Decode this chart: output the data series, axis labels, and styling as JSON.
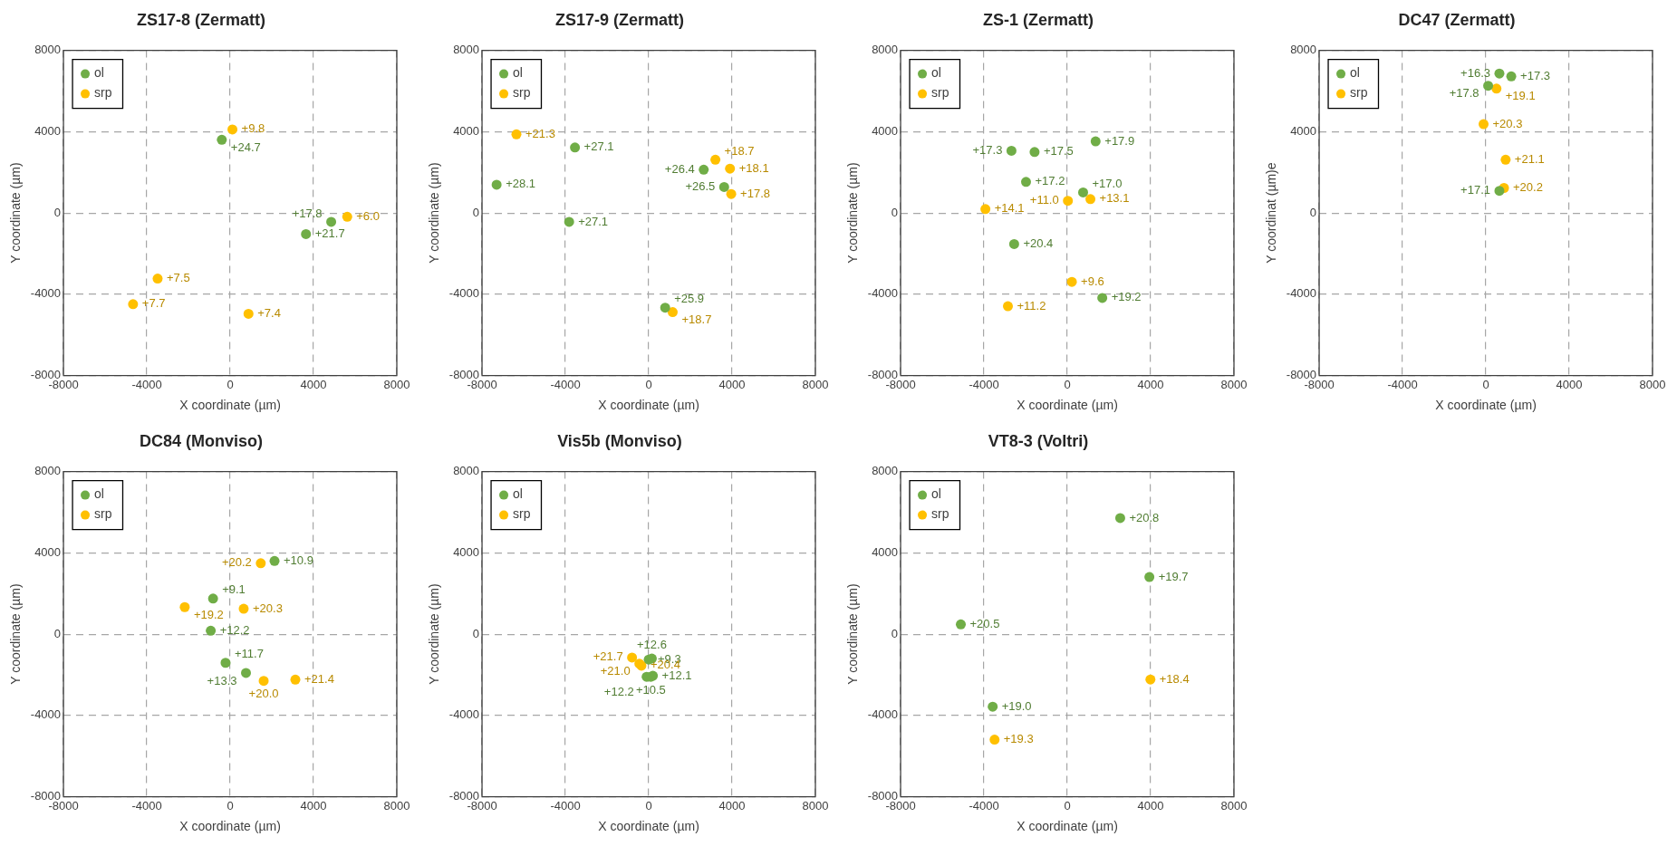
{
  "chart_data": [
    {
      "type": "scatter",
      "title": "ZS17-8 (Zermatt)",
      "xlabel": "X coordinate (µm)",
      "ylabel": "Y coordinate (µm)",
      "xlim": [
        -8000,
        8000
      ],
      "ylim": [
        -8000,
        8000
      ],
      "xticks": [
        -8000,
        -4000,
        0,
        4000,
        8000
      ],
      "yticks": [
        -8000,
        -4000,
        0,
        4000,
        8000
      ],
      "grid": true,
      "legend": "top left",
      "marker": "circle",
      "series": [
        {
          "name": "ol",
          "color": "#70ad47",
          "x": [
            -400,
            3640,
            4850
          ],
          "values": [
            3600,
            -1040,
            -440
          ]
        },
        {
          "name": "srp",
          "color": "#ffc000",
          "x": [
            110,
            5620,
            -3480,
            -4660,
            880
          ],
          "values": [
            4110,
            -190,
            -3230,
            -4490,
            -4960
          ]
        }
      ],
      "annotations": [
        {
          "text": "+24.7",
          "x": -400,
          "y": 3600
        },
        {
          "text": "+21.7",
          "x": 3640,
          "y": -1040
        },
        {
          "text": "+17.8",
          "x": 4850,
          "y": -440
        },
        {
          "text": "+9.8",
          "x": 110,
          "y": 4110
        },
        {
          "text": "+6.0",
          "x": 5620,
          "y": -190
        },
        {
          "text": "+7.5",
          "x": -3480,
          "y": -3230
        },
        {
          "text": "+7.7",
          "x": -4660,
          "y": -4490
        },
        {
          "text": "+7.4",
          "x": 880,
          "y": -4960
        }
      ]
    },
    {
      "type": "scatter",
      "title": "ZS17-9 (Zermatt)",
      "xlabel": "X coordinate (µm)",
      "ylabel": "Y coordinate (µm)",
      "xlim": [
        -8000,
        8000
      ],
      "ylim": [
        -8000,
        8000
      ],
      "xticks": [
        -8000,
        -4000,
        0,
        4000,
        8000
      ],
      "yticks": [
        -8000,
        -4000,
        0,
        4000,
        8000
      ],
      "grid": true,
      "legend": "top left",
      "marker": "circle",
      "series": [
        {
          "name": "ol",
          "color": "#70ad47",
          "x": [
            -3540,
            -7300,
            -3820,
            2640,
            3620,
            790
          ],
          "values": [
            3220,
            1390,
            -440,
            2130,
            1280,
            -4660
          ]
        },
        {
          "name": "srp",
          "color": "#ffc000",
          "x": [
            -6350,
            3200,
            3900,
            3960,
            1150
          ],
          "values": [
            3870,
            2620,
            2180,
            930,
            -4880
          ]
        }
      ],
      "annotations": [
        {
          "text": "+27.1",
          "x": -3540,
          "y": 3220
        },
        {
          "text": "+28.1",
          "x": -7300,
          "y": 1390
        },
        {
          "text": "+27.1",
          "x": -3820,
          "y": -440
        },
        {
          "text": "+26.4",
          "x": 2640,
          "y": 2130
        },
        {
          "text": "+26.5",
          "x": 3620,
          "y": 1280
        },
        {
          "text": "+25.9",
          "x": 790,
          "y": -4660
        },
        {
          "text": "+21.3",
          "x": -6350,
          "y": 3870
        },
        {
          "text": "+18.7",
          "x": 3200,
          "y": 2620
        },
        {
          "text": "+18.1",
          "x": 3900,
          "y": 2180
        },
        {
          "text": "+17.8",
          "x": 3960,
          "y": 930
        },
        {
          "text": "+18.7",
          "x": 1150,
          "y": -4880
        }
      ]
    },
    {
      "type": "scatter",
      "title": "ZS-1 (Zermatt)",
      "xlabel": "X coordinate (µm)",
      "ylabel": "Y coordinate (µm)",
      "xlim": [
        -8000,
        8000
      ],
      "ylim": [
        -8000,
        8000
      ],
      "xticks": [
        -8000,
        -4000,
        0,
        4000,
        8000
      ],
      "yticks": [
        -8000,
        -4000,
        0,
        4000,
        8000
      ],
      "grid": true,
      "legend": "top left",
      "marker": "circle",
      "series": [
        {
          "name": "ol",
          "color": "#70ad47",
          "x": [
            -2680,
            -1570,
            1360,
            -1980,
            760,
            -2550,
            1680
          ],
          "values": [
            3060,
            3000,
            3520,
            1530,
            1010,
            -1530,
            -4180
          ]
        },
        {
          "name": "srp",
          "color": "#ffc000",
          "x": [
            -3930,
            30,
            1110,
            220,
            -2850
          ],
          "values": [
            190,
            600,
            680,
            -3390,
            -4590
          ]
        }
      ],
      "annotations": [
        {
          "text": "+17.3",
          "x": -2680,
          "y": 3060
        },
        {
          "text": "+17.5",
          "x": -1570,
          "y": 3000
        },
        {
          "text": "+17.9",
          "x": 1360,
          "y": 3520
        },
        {
          "text": "+17.2",
          "x": -1980,
          "y": 1530
        },
        {
          "text": "+17.0",
          "x": 760,
          "y": 1010
        },
        {
          "text": "+20.4",
          "x": -2550,
          "y": -1530
        },
        {
          "text": "+19.2",
          "x": 1680,
          "y": -4180
        },
        {
          "text": "+14.1",
          "x": -3930,
          "y": 190
        },
        {
          "text": "+11.0",
          "x": 30,
          "y": 600
        },
        {
          "text": "+13.1",
          "x": 1110,
          "y": 680
        },
        {
          "text": "+9.6",
          "x": 220,
          "y": -3390
        },
        {
          "text": "+11.2",
          "x": -2850,
          "y": -4590
        }
      ]
    },
    {
      "type": "scatter",
      "title": "DC47 (Zermatt)",
      "xlabel": "X coordinate (µm)",
      "ylabel": "Y coordinat (µm)e",
      "xlim": [
        -8000,
        8000
      ],
      "ylim": [
        -8000,
        8000
      ],
      "xticks": [
        -8000,
        -4000,
        0,
        4000,
        8000
      ],
      "yticks": [
        -8000,
        -4000,
        0,
        4000,
        8000
      ],
      "grid": true,
      "legend": "top left",
      "marker": "circle",
      "series": [
        {
          "name": "ol",
          "color": "#70ad47",
          "x": [
            650,
            1220,
            110,
            650
          ],
          "values": [
            6860,
            6720,
            6260,
            1090
          ]
        },
        {
          "name": "srp",
          "color": "#ffc000",
          "x": [
            510,
            -110,
            950,
            870
          ],
          "values": [
            6120,
            4370,
            2620,
            1230
          ]
        }
      ],
      "annotations": [
        {
          "text": "+16.3",
          "x": 650,
          "y": 6860
        },
        {
          "text": "+17.3",
          "x": 1220,
          "y": 6720
        },
        {
          "text": "+17.8",
          "x": 110,
          "y": 6260
        },
        {
          "text": "+17.1",
          "x": 650,
          "y": 1090
        },
        {
          "text": "+19.1",
          "x": 510,
          "y": 6120
        },
        {
          "text": "+20.3",
          "x": -110,
          "y": 4370
        },
        {
          "text": "+21.1",
          "x": 950,
          "y": 2620
        },
        {
          "text": "+20.2",
          "x": 870,
          "y": 1230
        }
      ]
    },
    {
      "type": "scatter",
      "title": "DC84 (Monviso)",
      "xlabel": "X coordinate (µm)",
      "ylabel": "Y coordinate (µm)",
      "xlim": [
        -8000,
        8000
      ],
      "ylim": [
        -8000,
        8000
      ],
      "xticks": [
        -8000,
        -4000,
        0,
        4000,
        8000
      ],
      "yticks": [
        -8000,
        -4000,
        0,
        4000,
        8000
      ],
      "grid": true,
      "legend": "top left",
      "marker": "circle",
      "series": [
        {
          "name": "ol",
          "color": "#70ad47",
          "x": [
            2130,
            -820,
            -930,
            -220,
            760
          ],
          "values": [
            3600,
            1750,
            170,
            -1410,
            -1910
          ]
        },
        {
          "name": "srp",
          "color": "#ffc000",
          "x": [
            1470,
            -2180,
            650,
            1610,
            3130
          ],
          "values": [
            3490,
            1330,
            1250,
            -2300,
            -2240
          ]
        }
      ],
      "annotations": [
        {
          "text": "+10.9",
          "x": 2130,
          "y": 3600
        },
        {
          "text": "+9.1",
          "x": -820,
          "y": 1750
        },
        {
          "text": "+12.2",
          "x": -930,
          "y": 170
        },
        {
          "text": "+11.7",
          "x": -220,
          "y": -1410
        },
        {
          "text": "+13.3",
          "x": 760,
          "y": -1910
        },
        {
          "text": "+20.2",
          "x": 1470,
          "y": 3490
        },
        {
          "text": "+19.2",
          "x": -2180,
          "y": 1330
        },
        {
          "text": "+20.3",
          "x": 650,
          "y": 1250
        },
        {
          "text": "+20.0",
          "x": 1610,
          "y": -2300
        },
        {
          "text": "+21.4",
          "x": 3130,
          "y": -2240
        }
      ]
    },
    {
      "type": "scatter",
      "title": "Vis5b (Monviso)",
      "xlabel": "X coordinate (µm)",
      "ylabel": "Y coordinate (µm)",
      "xlim": [
        -8000,
        8000
      ],
      "ylim": [
        -8000,
        8000
      ],
      "xticks": [
        -8000,
        -4000,
        0,
        4000,
        8000
      ],
      "yticks": [
        -8000,
        -4000,
        0,
        4000,
        8000
      ],
      "grid": true,
      "legend": "top left",
      "marker": "circle",
      "series": [
        {
          "name": "ol",
          "color": "#70ad47",
          "x": [
            0,
            150,
            200,
            100,
            -100
          ],
          "values": [
            -1250,
            -1200,
            -2050,
            -2100,
            -2100
          ]
        },
        {
          "name": "srp",
          "color": "#ffc000",
          "x": [
            -800,
            -450,
            -350
          ],
          "values": [
            -1150,
            -1450,
            -1550
          ]
        }
      ],
      "annotations": [
        {
          "text": "+9.3",
          "x": 0,
          "y": -1250
        },
        {
          "text": "+12.6",
          "x": 150,
          "y": -1200
        },
        {
          "text": "+12.1",
          "x": 200,
          "y": -2050
        },
        {
          "text": "+10.5",
          "x": 100,
          "y": -2100
        },
        {
          "text": "+12.2",
          "x": -100,
          "y": -2100
        },
        {
          "text": "+21.7",
          "x": -800,
          "y": -1150
        },
        {
          "text": "+21.0",
          "x": -450,
          "y": -1450
        },
        {
          "text": "+20.4",
          "x": -350,
          "y": -1550
        }
      ]
    },
    {
      "type": "scatter",
      "title": "VT8-3 (Voltri)",
      "xlabel": "X coordinate (µm)",
      "ylabel": "Y coordinate (µm)",
      "xlim": [
        -8000,
        8000
      ],
      "ylim": [
        -8000,
        8000
      ],
      "xticks": [
        -8000,
        -4000,
        0,
        4000,
        8000
      ],
      "yticks": [
        -8000,
        -4000,
        0,
        4000,
        8000
      ],
      "grid": true,
      "legend": "top left",
      "marker": "circle",
      "series": [
        {
          "name": "ol",
          "color": "#70ad47",
          "x": [
            2540,
            3940,
            -5110,
            -3580
          ],
          "values": [
            5710,
            2810,
            480,
            -3570
          ]
        },
        {
          "name": "srp",
          "color": "#ffc000",
          "x": [
            3990,
            -3490
          ],
          "values": [
            -2230,
            -5190
          ]
        }
      ],
      "annotations": [
        {
          "text": "+20.8",
          "x": 2540,
          "y": 5710
        },
        {
          "text": "+19.7",
          "x": 3940,
          "y": 2810
        },
        {
          "text": "+20.5",
          "x": -5110,
          "y": 480
        },
        {
          "text": "+19.0",
          "x": -3580,
          "y": -3570
        },
        {
          "text": "+18.4",
          "x": 3990,
          "y": -2230
        },
        {
          "text": "+19.3",
          "x": -3490,
          "y": -5190
        }
      ]
    }
  ]
}
